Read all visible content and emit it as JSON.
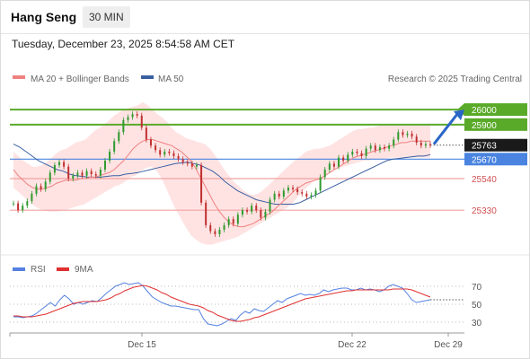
{
  "header": {
    "title": "Hang Seng",
    "timeframe": "30 MIN"
  },
  "timestamp": "Tuesday, December 23, 2025 8:54:58 AM CET",
  "legend": {
    "ma_label": "MA 20 + Bollinger Bands",
    "ma50_label": "MA 50",
    "credit": "Research © 2025 Trading Central"
  },
  "rsi_legend": {
    "rsi_label": "RSI",
    "ma9_label": "9MA"
  },
  "colors": {
    "resistance": "#5aaa2a",
    "support": "#f2a2a2",
    "pivot": "#4a84e0",
    "last": "#1a1a1a",
    "ma20": "#f08080",
    "ma50": "#3a5fa0",
    "band": "#ffdede",
    "up": "#2e9a2e",
    "down": "#c03030",
    "rsi": "#5580e0",
    "rsi_ma": "#e03030"
  },
  "chart_data": [
    {
      "type": "candlestick",
      "title": "",
      "x_ticks": [
        "Dec 15",
        "Dec 22",
        "Dec 29"
      ],
      "ylim": [
        25050,
        26150
      ],
      "levels": [
        {
          "value": 26000,
          "label": "26000",
          "kind": "resistance"
        },
        {
          "value": 25900,
          "label": "25900",
          "kind": "resistance"
        },
        {
          "value": 25763,
          "label": "25763",
          "kind": "last"
        },
        {
          "value": 25670,
          "label": "25670",
          "kind": "pivot"
        },
        {
          "value": 25540,
          "label": "25540",
          "kind": "support"
        },
        {
          "value": 25330,
          "label": "25330",
          "kind": "support"
        }
      ],
      "close": [
        25375,
        25330,
        25360,
        25390,
        25440,
        25490,
        25470,
        25520,
        25580,
        25630,
        25650,
        25620,
        25540,
        25560,
        25580,
        25560,
        25590,
        25570,
        25560,
        25600,
        25660,
        25720,
        25790,
        25850,
        25930,
        25950,
        25970,
        25960,
        25880,
        25800,
        25760,
        25730,
        25700,
        25720,
        25710,
        25690,
        25670,
        25650,
        25640,
        25620,
        25630,
        25380,
        25230,
        25190,
        25170,
        25200,
        25230,
        25270,
        25240,
        25300,
        25330,
        25320,
        25360,
        25330,
        25280,
        25320,
        25400,
        25440,
        25420,
        25460,
        25480,
        25470,
        25450,
        25440,
        25420,
        25430,
        25460,
        25550,
        25600,
        25640,
        25620,
        25680,
        25660,
        25700,
        25720,
        25710,
        25690,
        25740,
        25760,
        25730,
        25750,
        25740,
        25760,
        25800,
        25850,
        25830,
        25840,
        25820,
        25780,
        25760,
        25770,
        25763
      ],
      "ma20": [
        25600,
        25560,
        25530,
        25500,
        25480,
        25470,
        25470,
        25480,
        25490,
        25510,
        25520,
        25530,
        25530,
        25530,
        25540,
        25540,
        25550,
        25550,
        25560,
        25570,
        25580,
        25600,
        25630,
        25660,
        25700,
        25740,
        25770,
        25790,
        25800,
        25800,
        25790,
        25780,
        25770,
        25760,
        25740,
        25720,
        25690,
        25660,
        25610,
        25550,
        25490,
        25430,
        25370,
        25320,
        25280,
        25250,
        25230,
        25220,
        25220,
        25230,
        25240,
        25260,
        25280,
        25300,
        25320,
        25350,
        25380,
        25410,
        25440,
        25470,
        25490,
        25510,
        25520,
        25530,
        25540,
        25560,
        25580,
        25600,
        25620,
        25640,
        25660,
        25680,
        25690,
        25700,
        25710,
        25720,
        25730,
        25740,
        25750,
        25760,
        25770,
        25780,
        25780,
        25790,
        25790,
        25790,
        25790,
        25790
      ],
      "bb_upper": [
        25720,
        25690,
        25660,
        25640,
        25620,
        25620,
        25630,
        25650,
        25680,
        25710,
        25730,
        25740,
        25760,
        25780,
        25790,
        25800,
        25830,
        25860,
        25880,
        25900,
        25930,
        25960,
        25980,
        26000,
        26010,
        26020,
        26030,
        26050,
        26030,
        26000,
        25970,
        25950,
        25920,
        25880,
        25850,
        25830,
        25810,
        25800,
        25790,
        25780,
        25770,
        25740,
        25700,
        25650,
        25600,
        25560,
        25520,
        25490,
        25460,
        25440,
        25430,
        25440,
        25460,
        25490,
        25520,
        25550,
        25580,
        25610,
        25640,
        25670,
        25690,
        25720,
        25730,
        25740,
        25740,
        25750,
        25760,
        25780,
        25800,
        25820,
        25840,
        25860,
        25870,
        25870,
        25880,
        25880,
        25890,
        25900,
        25900,
        25900,
        25900,
        25900,
        25900,
        25900,
        25900,
        25900,
        25900,
        25900
      ],
      "bb_lower": [
        25480,
        25450,
        25420,
        25390,
        25360,
        25340,
        25330,
        25320,
        25320,
        25320,
        25330,
        25340,
        25350,
        25360,
        25370,
        25390,
        25410,
        25430,
        25450,
        25470,
        25490,
        25500,
        25520,
        25550,
        25560,
        25590,
        25610,
        25620,
        25600,
        25550,
        25480,
        25400,
        25330,
        25270,
        25210,
        25160,
        25130,
        25110,
        25100,
        25100,
        25110,
        25120,
        25130,
        25140,
        25150,
        25170,
        25190,
        25210,
        25230,
        25250,
        25270,
        25290,
        25310,
        25330,
        25350,
        25380,
        25420,
        25460,
        25490,
        25520,
        25540,
        25560,
        25580,
        25600,
        25610,
        25620,
        25630,
        25640,
        25650,
        25660,
        25660,
        25670,
        25670,
        25670,
        25680,
        25680,
        25680,
        25680,
        25680,
        25680,
        25680,
        25680,
        25680
      ],
      "ma50": [
        25770,
        25750,
        25720,
        25690,
        25660,
        25640,
        25620,
        25600,
        25590,
        25570,
        25560,
        25555,
        25550,
        25550,
        25550,
        25555,
        25560,
        25560,
        25570,
        25575,
        25580,
        25590,
        25600,
        25610,
        25620,
        25630,
        25640,
        25645,
        25650,
        25640,
        25630,
        25610,
        25590,
        25560,
        25520,
        25490,
        25460,
        25440,
        25420,
        25400,
        25390,
        25380,
        25370,
        25370,
        25370,
        25370,
        25380,
        25400,
        25420,
        25440,
        25460,
        25480,
        25500,
        25520,
        25540,
        25560,
        25580,
        25600,
        25620,
        25640,
        25660,
        25670,
        25675,
        25680,
        25685,
        25690,
        25690,
        25700
      ]
    },
    {
      "type": "line",
      "title": "",
      "ylim": [
        20,
        80
      ],
      "y_ticks": [
        70,
        50,
        30
      ],
      "series": [
        {
          "name": "RSI",
          "values": [
            36,
            36,
            35,
            36,
            37,
            40,
            44,
            48,
            52,
            48,
            55,
            60,
            56,
            50,
            52,
            50,
            52,
            54,
            53,
            57,
            62,
            66,
            70,
            72,
            74,
            72,
            73,
            74,
            70,
            64,
            58,
            55,
            52,
            50,
            48,
            48,
            47,
            46,
            45,
            44,
            44,
            34,
            28,
            27,
            26,
            28,
            31,
            34,
            32,
            38,
            42,
            40,
            45,
            43,
            42,
            46,
            50,
            54,
            52,
            56,
            58,
            60,
            62,
            60,
            61,
            60,
            62,
            66,
            64,
            66,
            67,
            68,
            68,
            66,
            66,
            68,
            66,
            67,
            66,
            64,
            66,
            70,
            72,
            70,
            68,
            62,
            55,
            52,
            53,
            54,
            55
          ]
        },
        {
          "name": "9MA",
          "values": [
            37,
            37,
            36,
            36,
            36,
            37,
            38,
            39,
            41,
            43,
            45,
            47,
            49,
            51,
            52,
            53,
            53,
            53,
            53,
            54,
            55,
            57,
            60,
            62,
            65,
            67,
            69,
            70,
            71,
            70,
            68,
            66,
            63,
            61,
            58,
            56,
            54,
            52,
            50,
            49,
            48,
            46,
            43,
            41,
            38,
            36,
            34,
            32,
            31,
            31,
            32,
            33,
            35,
            36,
            38,
            40,
            42,
            44,
            46,
            48,
            50,
            52,
            54,
            56,
            57,
            58,
            59,
            60,
            61,
            62,
            63,
            64,
            65,
            65,
            66,
            66,
            66,
            66,
            66,
            66,
            66,
            66,
            67,
            67,
            67,
            67,
            66,
            64,
            62,
            60,
            58
          ]
        }
      ]
    }
  ]
}
